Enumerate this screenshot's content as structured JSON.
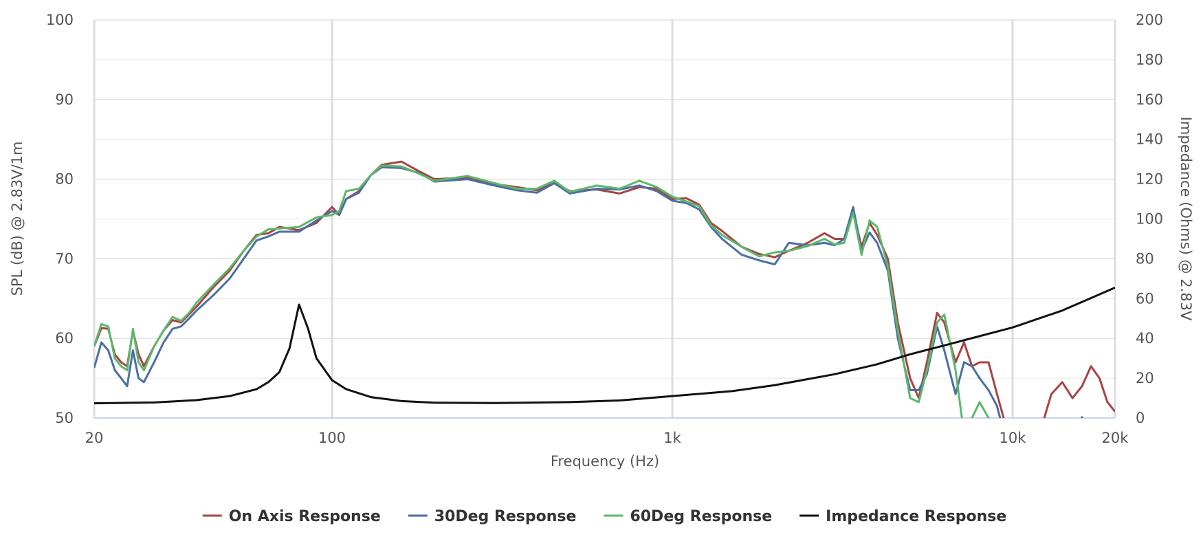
{
  "chart_data": {
    "type": "line",
    "x_label": "Frequency (Hz)",
    "y_label": "SPL (dB) @ 2.83V/1m",
    "y2_label": "Impedance (Ohms) @ 2.83V",
    "x_log_scale": true,
    "xlim": [
      20,
      20000
    ],
    "xticks": [
      20,
      100,
      {
        "value": 1000,
        "label": "1k"
      },
      {
        "value": 10000,
        "label": "10k"
      },
      {
        "value": 20000,
        "label": "20k"
      }
    ],
    "ylim": [
      50,
      100
    ],
    "yticks": [
      50,
      60,
      70,
      80,
      90,
      100
    ],
    "y_minor_ticks": [
      55,
      65,
      75,
      85,
      95
    ],
    "y2lim": [
      0,
      200
    ],
    "y2ticks": [
      0,
      20,
      40,
      60,
      80,
      100,
      120,
      140,
      160,
      180,
      200
    ],
    "grid": true,
    "legend": "bottom",
    "x": [
      20,
      21,
      22,
      23,
      24,
      25,
      26,
      27,
      28,
      30,
      32,
      34,
      36,
      38,
      40,
      45,
      50,
      55,
      60,
      65,
      70,
      80,
      90,
      100,
      105,
      110,
      120,
      130,
      140,
      160,
      180,
      200,
      250,
      300,
      350,
      400,
      450,
      500,
      600,
      700,
      800,
      900,
      1000,
      1100,
      1200,
      1300,
      1400,
      1600,
      1800,
      2000,
      2200,
      2500,
      2800,
      3000,
      3200,
      3400,
      3600,
      3800,
      4000,
      4300,
      4600,
      5000,
      5300,
      5600,
      6000,
      6300,
      6800,
      7200,
      7600,
      8000,
      8500,
      9000,
      10000,
      12000,
      13000,
      14000,
      15000,
      16000,
      17000,
      18000,
      19000,
      20000
    ],
    "series": [
      {
        "name": "On Axis Response",
        "color": "#a84343",
        "values": [
          59,
          61.3,
          61.2,
          58,
          57,
          56.5,
          61,
          58,
          56.5,
          59,
          61,
          62.3,
          62,
          63,
          64,
          66.5,
          68.5,
          71,
          73,
          73.2,
          74,
          73.6,
          74.5,
          76.5,
          75.5,
          77.5,
          78.5,
          80.5,
          81.8,
          82.2,
          81,
          80,
          80.2,
          79.4,
          79,
          78.6,
          79.5,
          78.5,
          78.7,
          78.2,
          79,
          78.8,
          77.5,
          77.6,
          76.8,
          74.5,
          73.5,
          71.5,
          70.6,
          70.2,
          71,
          72,
          73.2,
          72.5,
          72.5,
          76,
          71.5,
          74.5,
          73,
          70,
          62,
          55,
          52.5,
          57,
          63.2,
          62,
          57,
          59.5,
          56.5,
          57,
          57,
          53,
          46,
          48,
          53,
          54.5,
          52.5,
          54,
          56.5,
          55,
          52,
          50.8
        ]
      },
      {
        "name": "30Deg Response",
        "color": "#4a6fa5",
        "values": [
          56.3,
          59.5,
          58.5,
          56,
          55,
          54,
          58.5,
          55,
          54.5,
          57,
          59.5,
          61.2,
          61.5,
          62.5,
          63.5,
          65.5,
          67.5,
          70,
          72.3,
          72.8,
          73.4,
          73.4,
          74.8,
          76,
          75.5,
          77.5,
          78.3,
          80.5,
          81.5,
          81.4,
          80.8,
          79.7,
          80,
          79.2,
          78.6,
          78.3,
          79.5,
          78.2,
          78.8,
          78.7,
          79.2,
          78.5,
          77.3,
          77,
          76.2,
          74,
          72.5,
          70.5,
          69.8,
          69.3,
          72,
          71.7,
          72,
          71.7,
          72.5,
          76.5,
          71,
          73.3,
          72,
          68.5,
          60,
          53.5,
          53.5,
          55.5,
          61.5,
          58.5,
          53,
          57,
          56.5,
          55,
          53.5,
          51.5,
          44,
          44,
          45,
          45,
          45,
          50.1,
          45,
          45,
          45,
          45
        ]
      },
      {
        "name": "60Deg Response",
        "color": "#5cb86a",
        "values": [
          59,
          61.8,
          61.5,
          57.5,
          56.5,
          56,
          61.2,
          57,
          56,
          59,
          61,
          62.7,
          62.2,
          63.2,
          64.5,
          66.8,
          68.8,
          71,
          72.8,
          73.7,
          73.8,
          74,
          75.2,
          75.5,
          76,
          78.5,
          78.8,
          80.5,
          81.7,
          81.6,
          80.7,
          79.8,
          80.4,
          79.5,
          78.8,
          78.8,
          79.8,
          78.4,
          79.2,
          78.8,
          79.8,
          79,
          77.8,
          77.2,
          76.6,
          74.2,
          73,
          71.5,
          70.3,
          70.8,
          71,
          71.6,
          72.5,
          71.8,
          72,
          75.8,
          70.5,
          74.8,
          74,
          69,
          61,
          52.5,
          52,
          56,
          62,
          63,
          56,
          48,
          50,
          52,
          50,
          45,
          44,
          44,
          44,
          44,
          44,
          44,
          44,
          44,
          44,
          44
        ]
      },
      {
        "name": "Impedance Response",
        "color": "#111111",
        "axis": "y2",
        "x": [
          20,
          30,
          40,
          50,
          60,
          65,
          70,
          75,
          80,
          85,
          90,
          100,
          110,
          130,
          160,
          200,
          300,
          500,
          700,
          1000,
          1500,
          2000,
          3000,
          4000,
          5000,
          7000,
          10000,
          14000,
          20000
        ],
        "values": [
          7.4,
          7.8,
          9,
          11,
          14.5,
          18,
          23,
          35,
          57,
          45,
          30,
          19,
          14.5,
          10.5,
          8.5,
          7.7,
          7.5,
          8,
          8.8,
          11,
          13.5,
          16.5,
          22,
          27,
          32,
          38.5,
          45.5,
          54,
          65.5
        ]
      }
    ]
  }
}
